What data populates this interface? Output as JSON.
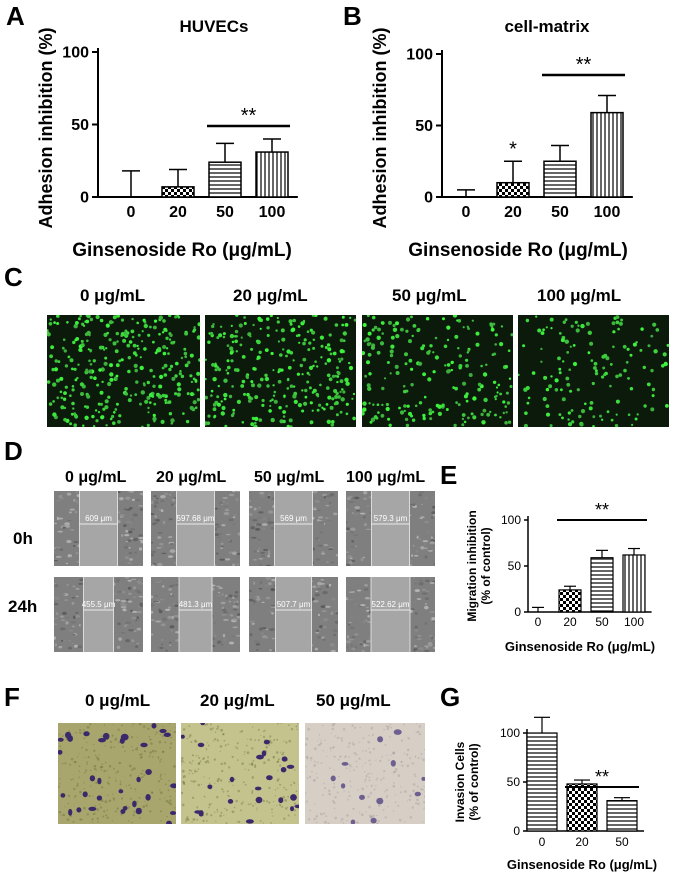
{
  "panels": {
    "A": "A",
    "B": "B",
    "C": "C",
    "D": "D",
    "E": "E",
    "F": "F",
    "G": "G"
  },
  "ticks_0_50_100": [
    "0",
    "50",
    "100"
  ],
  "chart_data": [
    {
      "id": "A",
      "type": "bar",
      "title": "HUVECs",
      "xlabel": "Ginsenoside Ro (μg/mL)",
      "ylabel": "Adhesion inhibition (%)",
      "categories": [
        "0",
        "20",
        "50",
        "100"
      ],
      "values": [
        0,
        7,
        24,
        31
      ],
      "errors": [
        18,
        12,
        13,
        9
      ],
      "patterns": [
        "none",
        "checker",
        "horizontal",
        "vertical"
      ],
      "ylim": [
        0,
        100
      ],
      "yticks": [
        0,
        50,
        100
      ],
      "annotations": [
        {
          "text": "**",
          "from": "50",
          "to": "100"
        }
      ]
    },
    {
      "id": "B",
      "type": "bar",
      "title": "cell-matrix",
      "xlabel": "Ginsenoside Ro (μg/mL)",
      "ylabel": "Adhesion inhibition (%)",
      "categories": [
        "0",
        "20",
        "50",
        "100"
      ],
      "values": [
        0,
        10,
        25,
        59
      ],
      "errors": [
        5,
        15,
        11,
        12
      ],
      "patterns": [
        "none",
        "checker",
        "horizontal",
        "vertical"
      ],
      "ylim": [
        0,
        100
      ],
      "yticks": [
        0,
        50,
        100
      ],
      "annotations": [
        {
          "text": "*",
          "at": "20"
        },
        {
          "text": "**",
          "from": "50",
          "to": "100"
        }
      ]
    },
    {
      "id": "E",
      "type": "bar",
      "xlabel": "Ginsenoside Ro (μg/mL)",
      "ylabel": "Migration inhibition (% of control)",
      "categories": [
        "0",
        "20",
        "50",
        "100"
      ],
      "values": [
        0,
        24,
        59,
        62
      ],
      "errors": [
        5,
        4,
        8,
        7
      ],
      "patterns": [
        "none",
        "checker",
        "horizontal",
        "vertical"
      ],
      "ylim": [
        0,
        100
      ],
      "yticks": [
        0,
        50,
        100
      ],
      "annotations": [
        {
          "text": "**",
          "from": "20",
          "to": "100"
        }
      ]
    },
    {
      "id": "G",
      "type": "bar",
      "xlabel": "Ginsenoside Ro (μg/mL)",
      "ylabel": "Invasion Cells (% of control)",
      "categories": [
        "0",
        "20",
        "50"
      ],
      "values": [
        100,
        48,
        31
      ],
      "errors": [
        16,
        4,
        3
      ],
      "patterns": [
        "horizontal",
        "checker",
        "horizontal"
      ],
      "ylim": [
        0,
        100
      ],
      "yticks": [
        0,
        50,
        100
      ],
      "annotations": [
        {
          "text": "**",
          "from": "20",
          "to": "50"
        }
      ]
    }
  ],
  "panel_c": {
    "labels": [
      "0 μg/mL",
      "20 μg/mL",
      "50 μg/mL",
      "100 μg/mL"
    ],
    "cell_density": [
      320,
      290,
      210,
      140
    ]
  },
  "panel_d": {
    "columns": [
      "0 μg/mL",
      "20 μg/mL",
      "50 μg/mL",
      "100 μg/mL"
    ],
    "rows": [
      "0h",
      "24h"
    ],
    "widths_0h": [
      "609 μm",
      "597.68 μm",
      "569 μm",
      "579.3 μm"
    ],
    "widths_24h": [
      "455.5 μm",
      "481.3 μm",
      "507.7 μm",
      "522.62 μm"
    ]
  },
  "panel_f": {
    "labels": [
      "0 μg/mL",
      "20 μg/mL",
      "50 μg/mL"
    ]
  }
}
